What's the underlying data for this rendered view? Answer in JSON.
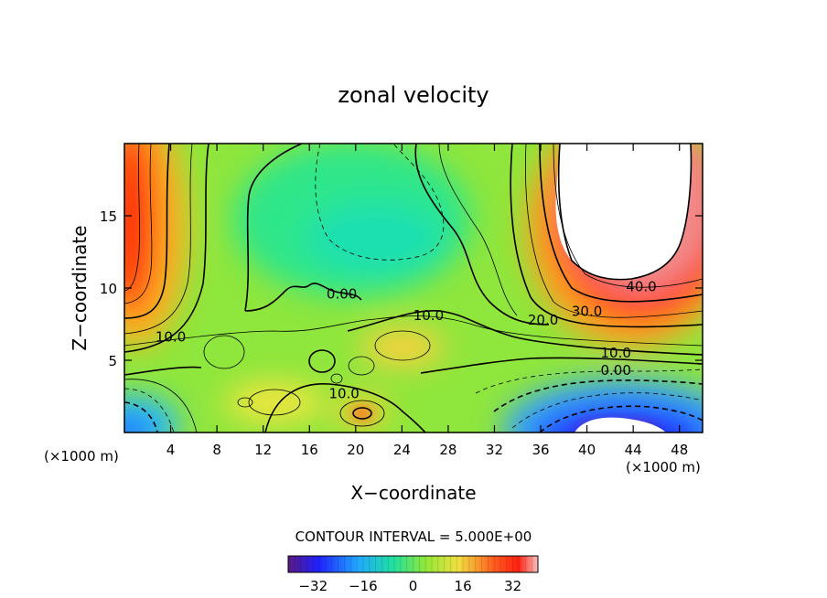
{
  "chart_data": {
    "type": "contour",
    "title": "zonal velocity",
    "xlabel": "X−coordinate",
    "ylabel": "Z−coordinate",
    "x_unit_label": "(×1000 m)",
    "z_unit_label": "(×1000 m)",
    "xlim": [
      0,
      50
    ],
    "ylim": [
      0,
      20
    ],
    "x_ticks": [
      4,
      8,
      12,
      16,
      20,
      24,
      28,
      32,
      36,
      40,
      44,
      48
    ],
    "y_ticks": [
      5,
      10,
      15
    ],
    "contour_interval_text": "CONTOUR INTERVAL = 5.000E+00",
    "contour_labels": [
      {
        "text": "0.00",
        "x": 18.8,
        "z": 9.6
      },
      {
        "text": "10.0",
        "x": 26.3,
        "z": 8.1
      },
      {
        "text": "10.0",
        "x": 4.0,
        "z": 6.6
      },
      {
        "text": "10.0",
        "x": 19.0,
        "z": 2.7
      },
      {
        "text": "20.0",
        "x": 36.2,
        "z": 7.8
      },
      {
        "text": "30.0",
        "x": 40.0,
        "z": 8.4
      },
      {
        "text": "40.0",
        "x": 44.7,
        "z": 10.1
      },
      {
        "text": "10.0",
        "x": 42.5,
        "z": 5.5
      },
      {
        "text": "0.00",
        "x": 42.5,
        "z": 4.3
      }
    ],
    "colorbar": {
      "range": [
        -40,
        40
      ],
      "ticks": [
        -32,
        -16,
        0,
        16,
        32
      ],
      "tick_labels": [
        "−32",
        "−16",
        "0",
        "16",
        "32"
      ]
    },
    "colors": {
      "negative_strong": "#7a1fa8",
      "negative": "#1a3cff",
      "zero": "#22e08a",
      "weak_positive": "#88e83a",
      "moderate": "#f5e640",
      "strong": "#ff2a10",
      "very_strong": "#f09898",
      "overflow": "#ffffff"
    }
  }
}
